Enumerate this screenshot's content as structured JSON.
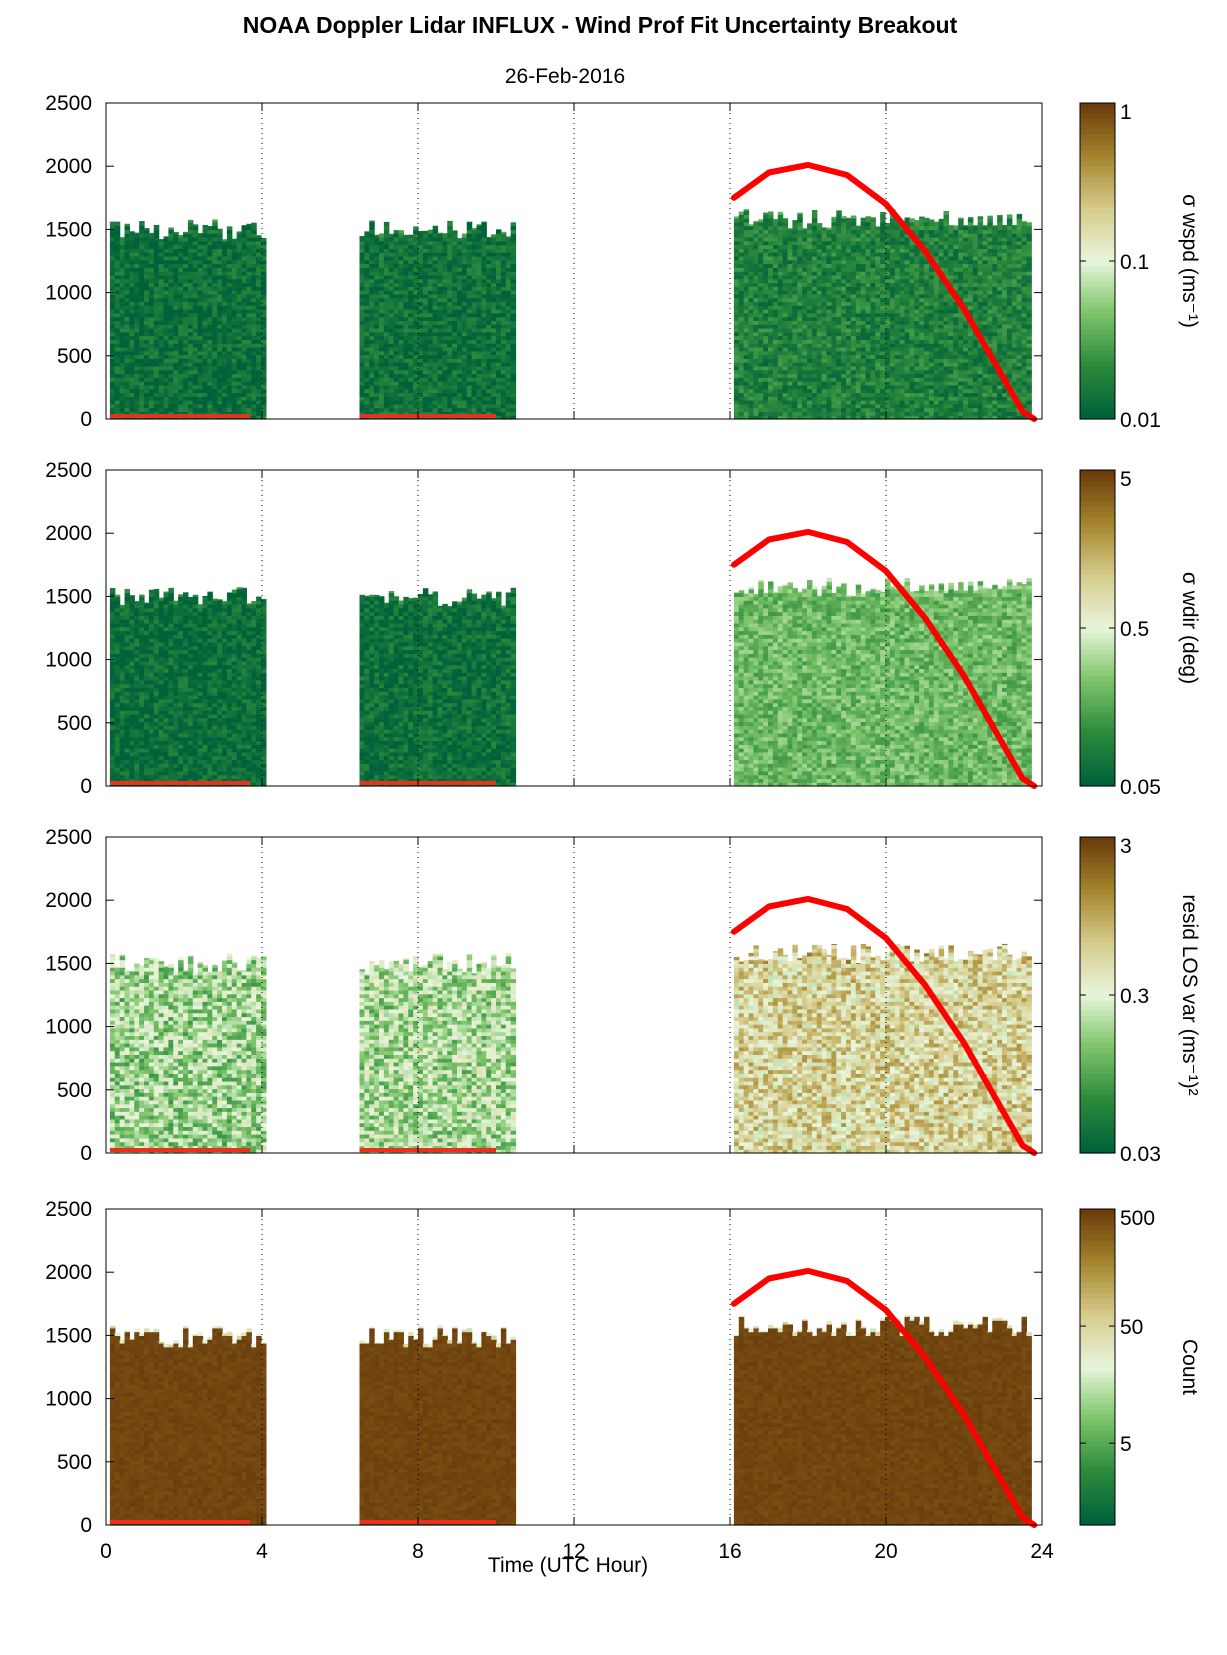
{
  "figure": {
    "title": "NOAA Doppler Lidar INFLUX - Wind Prof Fit Uncertainty Breakout",
    "subtitle": "26-Feb-2016",
    "xlabel": "Time (UTC Hour)"
  },
  "chart_data": [
    {
      "type": "heatmap",
      "panel": 1,
      "title": "NOAA Doppler Lidar INFLUX - Wind Prof Fit Uncertainty Breakout",
      "subtitle": "26-Feb-2016",
      "xlabel": "",
      "ylabel": "",
      "xlim": [
        0,
        24
      ],
      "ylim": [
        0,
        2500
      ],
      "xticks": [
        0,
        4,
        8,
        12,
        16,
        20,
        24
      ],
      "yticks": [
        0,
        500,
        1000,
        1500,
        2000,
        2500
      ],
      "grid": "dotted vertical lines at 4, 8, 12, 16, 20 h",
      "colorbar": {
        "label": "σ wspd (ms⁻¹)",
        "scale": "log",
        "range": [
          0.01,
          1
        ],
        "ticks": [
          "0.01",
          "0.1",
          "1"
        ]
      },
      "data_periods": [
        {
          "x_start": 0.1,
          "x_end": 4.0,
          "top_height_m": 1500,
          "level": "low (~0.01-0.03)"
        },
        {
          "x_start": 6.5,
          "x_end": 10.4,
          "top_height_m": 1500,
          "level": "low (~0.01-0.03)"
        },
        {
          "x_start": 16.1,
          "x_end": 23.7,
          "top_height_m": 1580,
          "level": "low to moderate (~0.01-0.05)"
        }
      ],
      "overlay_curve": {
        "color": "#ff0000",
        "points": [
          [
            16.1,
            1750
          ],
          [
            17,
            1950
          ],
          [
            18,
            2010
          ],
          [
            19,
            1930
          ],
          [
            20,
            1700
          ],
          [
            21,
            1330
          ],
          [
            22,
            870
          ],
          [
            23,
            330
          ],
          [
            23.5,
            60
          ],
          [
            23.8,
            0
          ]
        ]
      },
      "baseline_bar": {
        "color": "#e8321e",
        "segments": [
          [
            0.1,
            3.7
          ],
          [
            6.5,
            10.0
          ]
        ]
      }
    },
    {
      "type": "heatmap",
      "panel": 2,
      "xlabel": "",
      "ylabel": "",
      "xlim": [
        0,
        24
      ],
      "ylim": [
        0,
        2500
      ],
      "xticks": [
        0,
        4,
        8,
        12,
        16,
        20,
        24
      ],
      "yticks": [
        0,
        500,
        1000,
        1500,
        2000,
        2500
      ],
      "colorbar": {
        "label": "σ wdir (deg)",
        "scale": "log",
        "range": [
          0.05,
          5
        ],
        "ticks": [
          "0.05",
          "0.5",
          "5"
        ]
      },
      "data_periods": [
        {
          "x_start": 0.1,
          "x_end": 4.0,
          "top_height_m": 1500,
          "level": "low (~0.05-0.1)"
        },
        {
          "x_start": 6.5,
          "x_end": 10.4,
          "top_height_m": 1500,
          "level": "low (~0.05-0.1)"
        },
        {
          "x_start": 16.1,
          "x_end": 23.7,
          "top_height_m": 1580,
          "level": "moderate (~0.1-0.6)"
        }
      ]
    },
    {
      "type": "heatmap",
      "panel": 3,
      "xlabel": "",
      "ylabel": "",
      "xlim": [
        0,
        24
      ],
      "ylim": [
        0,
        2500
      ],
      "xticks": [
        0,
        4,
        8,
        12,
        16,
        20,
        24
      ],
      "yticks": [
        0,
        500,
        1000,
        1500,
        2000,
        2500
      ],
      "colorbar": {
        "label": "resid LOS var (ms⁻¹)²",
        "scale": "log",
        "range": [
          0.03,
          3
        ],
        "ticks": [
          "0.03",
          "0.3",
          "3"
        ]
      },
      "data_periods": [
        {
          "x_start": 0.1,
          "x_end": 4.0,
          "top_height_m": 1500,
          "level": "moderate (~0.1-0.4)"
        },
        {
          "x_start": 6.5,
          "x_end": 10.4,
          "top_height_m": 1500,
          "level": "moderate (~0.1-0.4)"
        },
        {
          "x_start": 16.1,
          "x_end": 23.7,
          "top_height_m": 1580,
          "level": "high (~0.3-3)"
        }
      ]
    },
    {
      "type": "heatmap",
      "panel": 4,
      "xlabel": "Time (UTC Hour)",
      "ylabel": "",
      "xlim": [
        0,
        24
      ],
      "ylim": [
        0,
        2500
      ],
      "xticks": [
        0,
        4,
        8,
        12,
        16,
        20,
        24
      ],
      "yticks": [
        0,
        500,
        1000,
        1500,
        2000,
        2500
      ],
      "colorbar": {
        "label": "Count",
        "scale": "log",
        "range": [
          1,
          500
        ],
        "ticks": [
          "5",
          "50",
          "500"
        ]
      },
      "data_periods": [
        {
          "x_start": 0.1,
          "x_end": 4.0,
          "top_height_m": 1500,
          "level": "high (~500)"
        },
        {
          "x_start": 6.5,
          "x_end": 10.4,
          "top_height_m": 1500,
          "level": "high (~500)"
        },
        {
          "x_start": 16.1,
          "x_end": 23.7,
          "top_height_m": 1580,
          "level": "high (~500)"
        }
      ]
    }
  ],
  "colors": {
    "colormap": [
      "#00623a",
      "#2e8b3d",
      "#7cc46a",
      "#e8f5dc",
      "#d6cc8c",
      "#a5862e",
      "#6b3d0c"
    ],
    "curve": "#ff0000",
    "baseline": "#e8321e"
  }
}
